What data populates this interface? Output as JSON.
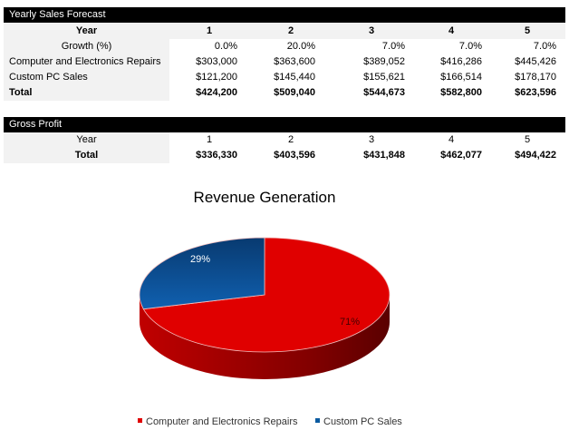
{
  "sales": {
    "title": "Yearly Sales Forecast",
    "year_label": "Year",
    "years": [
      "1",
      "2",
      "3",
      "4",
      "5"
    ],
    "rows": [
      {
        "label": "Growth (%)",
        "values": [
          "0.0%",
          "20.0%",
          "7.0%",
          "7.0%",
          "7.0%"
        ]
      },
      {
        "label": "Computer and Electronics Repairs",
        "values": [
          "$303,000",
          "$363,600",
          "$389,052",
          "$416,286",
          "$445,426"
        ]
      },
      {
        "label": "Custom PC Sales",
        "values": [
          "$121,200",
          "$145,440",
          "$155,621",
          "$166,514",
          "$178,170"
        ]
      },
      {
        "label": "Total",
        "values": [
          "$424,200",
          "$509,040",
          "$544,673",
          "$582,800",
          "$623,596"
        ]
      }
    ]
  },
  "profit": {
    "title": "Gross Profit",
    "year_label": "Year",
    "years": [
      "1",
      "2",
      "3",
      "4",
      "5"
    ],
    "total_label": "Total",
    "totals": [
      "$336,330",
      "$403,596",
      "$431,848",
      "$462,077",
      "$494,422"
    ]
  },
  "chart_data": {
    "type": "pie",
    "title": "Revenue Generation",
    "categories": [
      "Computer and Electronics Repairs",
      "Custom PC Sales"
    ],
    "values": [
      71,
      29
    ],
    "labels": [
      "71%",
      "29%"
    ],
    "colors": [
      "#e00000",
      "#0a5aa0"
    ],
    "legend": "bottom",
    "style": "3d"
  }
}
